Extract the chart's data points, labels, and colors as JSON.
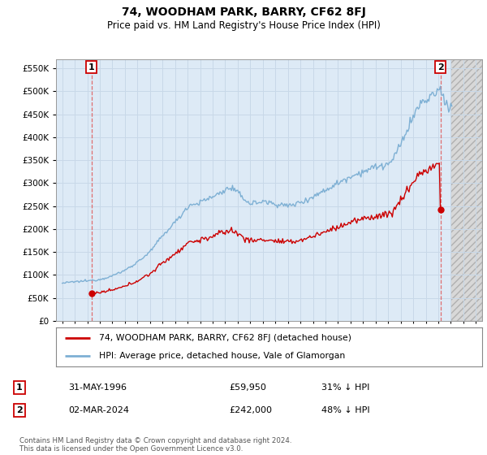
{
  "title": "74, WOODHAM PARK, BARRY, CF62 8FJ",
  "subtitle": "Price paid vs. HM Land Registry's House Price Index (HPI)",
  "hpi_label": "HPI: Average price, detached house, Vale of Glamorgan",
  "property_label": "74, WOODHAM PARK, BARRY, CF62 8FJ (detached house)",
  "transaction1_date": "31-MAY-1996",
  "transaction1_price": 59950,
  "transaction1_note": "31% ↓ HPI",
  "transaction2_date": "02-MAR-2024",
  "transaction2_price": 242000,
  "transaction2_note": "48% ↓ HPI",
  "ylim": [
    0,
    570000
  ],
  "yticks": [
    0,
    50000,
    100000,
    150000,
    200000,
    250000,
    300000,
    350000,
    400000,
    450000,
    500000,
    550000
  ],
  "year_start": 1994,
  "year_end": 2027,
  "grid_color": "#c8d8e8",
  "hpi_color": "#7eb0d4",
  "property_color": "#cc0000",
  "bg_color": "#ddeaf6",
  "hatch_bg": "#e0e0e0",
  "footnote": "Contains HM Land Registry data © Crown copyright and database right 2024.\nThis data is licensed under the Open Government Licence v3.0."
}
